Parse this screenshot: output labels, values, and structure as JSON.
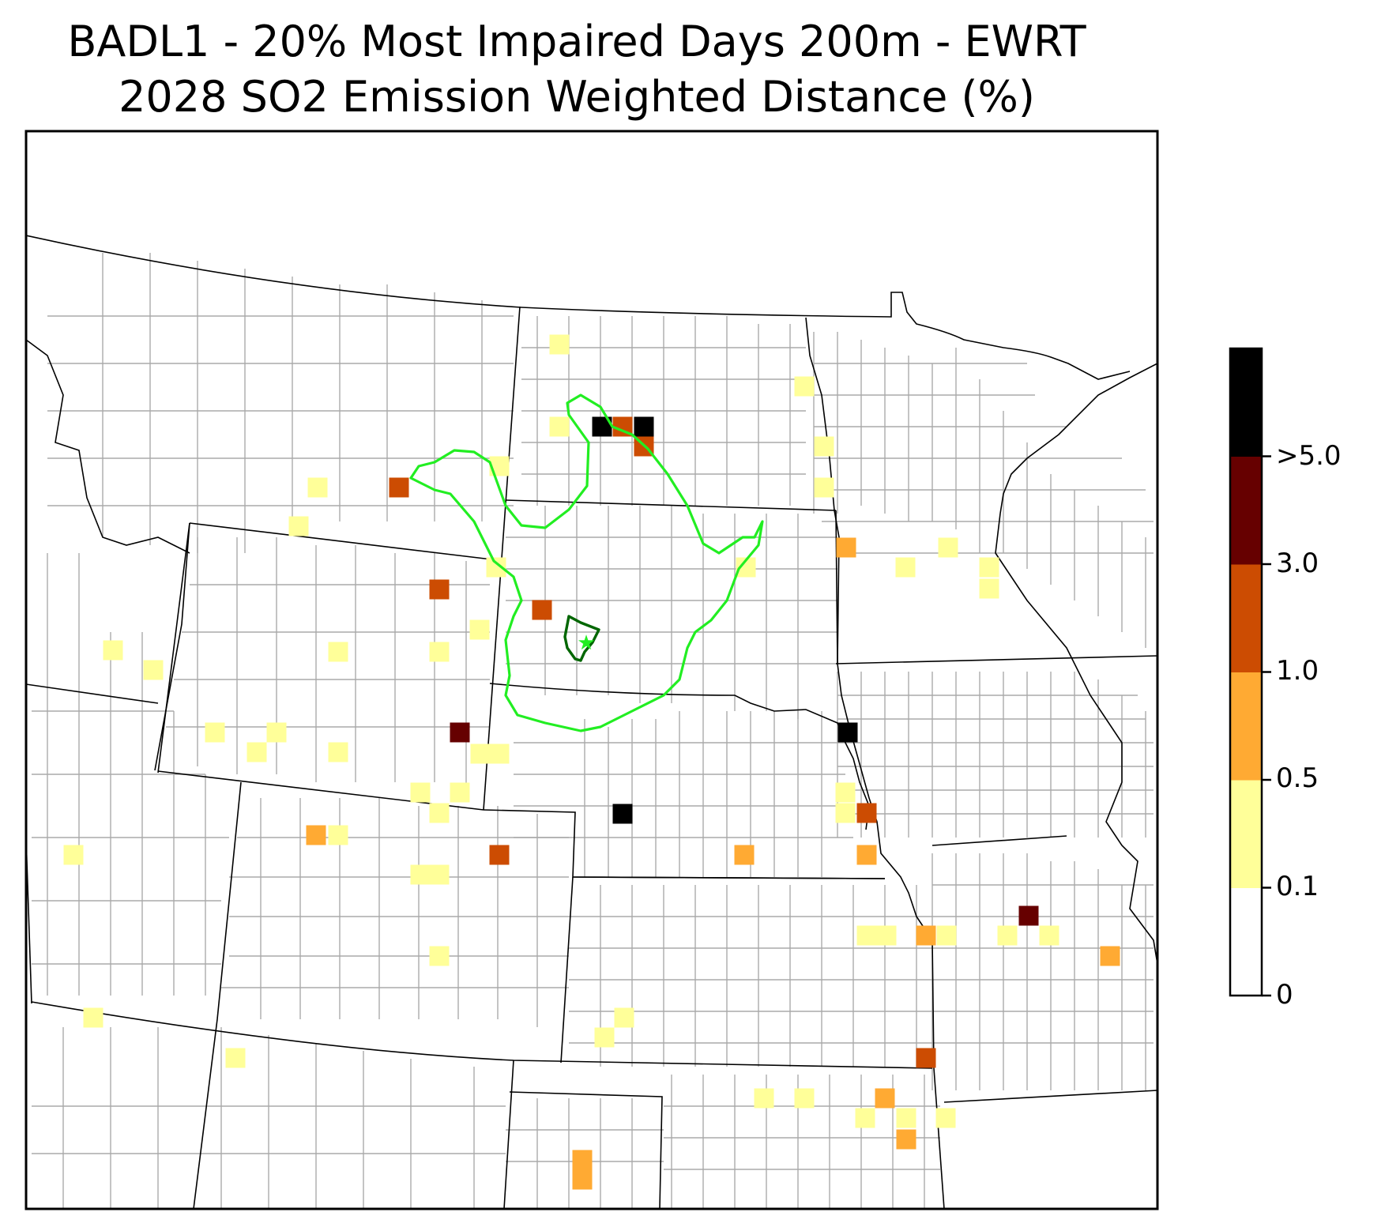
{
  "title": {
    "line1": "BADL1 - 20% Most Impaired Days 200m - EWRT",
    "line2": "2028 SO2 Emission Weighted Distance (%)"
  },
  "colorbar": {
    "bins": [
      {
        "from": "0",
        "to": "0.1",
        "color": "#ffffff"
      },
      {
        "from": "0.1",
        "to": "0.5",
        "color": "#ffff99"
      },
      {
        "from": "0.5",
        "to": "1.0",
        "color": "#ffaa33"
      },
      {
        "from": "1.0",
        "to": "3.0",
        "color": "#cc4c02"
      },
      {
        "from": "3.0",
        "to": ">5.0",
        "color": "#660000"
      },
      {
        "from": ">5.0",
        "to": "",
        "color": "#000000"
      }
    ],
    "tick_labels": [
      "0",
      "0.1",
      "0.5",
      "1.0",
      "3.0",
      ">5.0"
    ]
  },
  "map": {
    "marker": "star-icon",
    "outer_contour_color": "#22ee22",
    "inner_contour_color": "#006600",
    "state_border_color": "#000000",
    "county_line_color": "#aaaaaa"
  }
}
